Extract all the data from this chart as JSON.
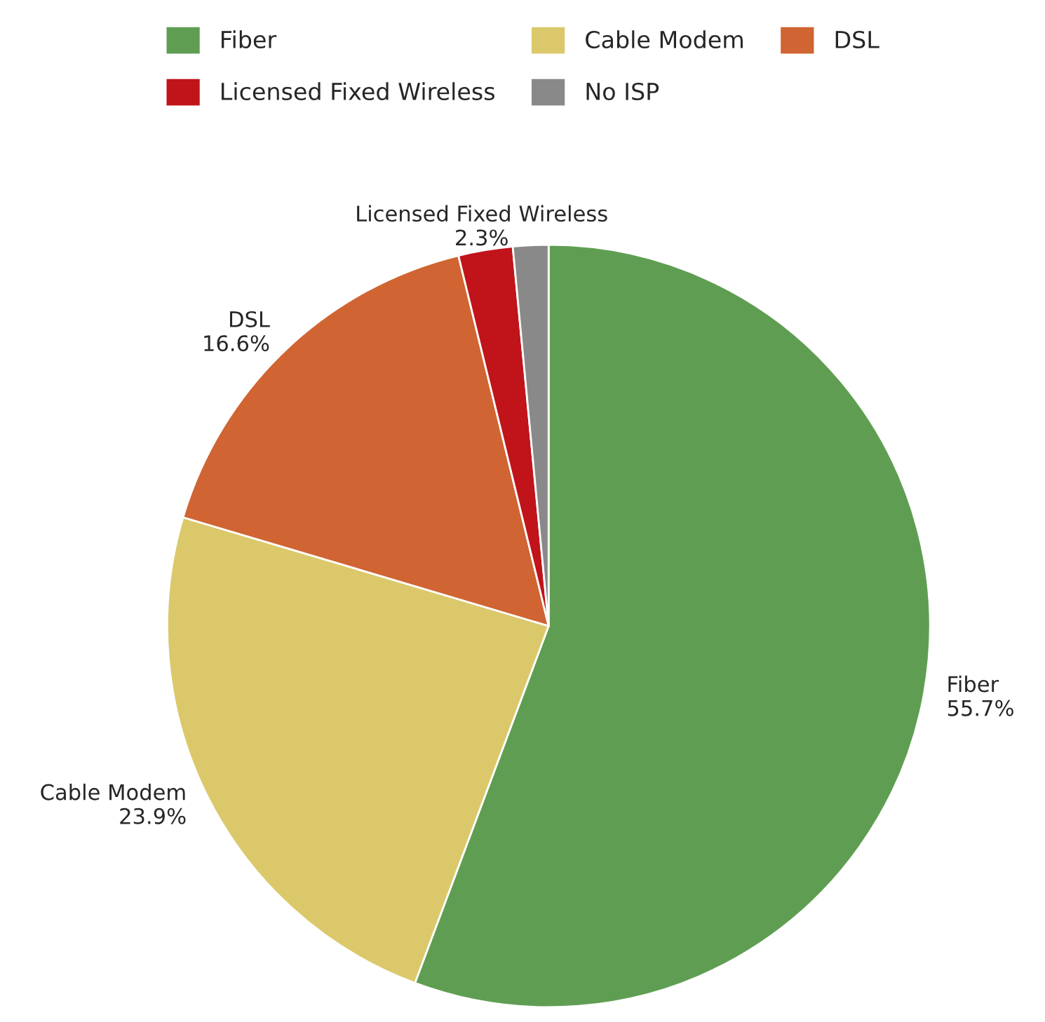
{
  "chart_data": {
    "type": "pie",
    "categories": [
      "Fiber",
      "Cable Modem",
      "DSL",
      "Licensed Fixed Wireless",
      "No ISP"
    ],
    "values": [
      55.7,
      23.9,
      16.6,
      2.3,
      1.5
    ],
    "value_labels": [
      "55.7%",
      "23.9%",
      "16.6%",
      "2.3%",
      null
    ],
    "colors": [
      "#5f9e52",
      "#dbc86b",
      "#d06432",
      "#c0141a",
      "#898989"
    ],
    "legend": "top"
  }
}
